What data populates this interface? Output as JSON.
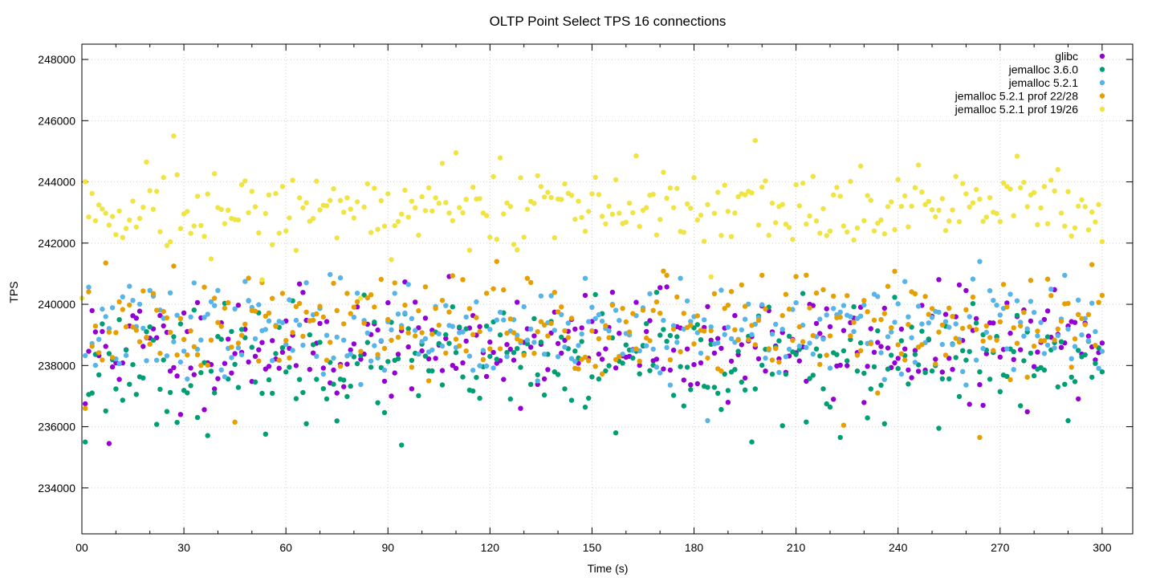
{
  "chart_data": {
    "type": "scatter",
    "title": "OLTP Point Select TPS 16 connections",
    "xlabel": "Time (s)",
    "ylabel": "TPS",
    "xlim": [
      0,
      309
    ],
    "ylim": [
      232500,
      248500
    ],
    "x_ticks": [
      0,
      30,
      60,
      90,
      120,
      150,
      180,
      210,
      240,
      270,
      300
    ],
    "x_tick_labels": [
      "00",
      "30",
      "60",
      "90",
      "120",
      "150",
      "180",
      "210",
      "240",
      "270",
      "300"
    ],
    "y_ticks": [
      234000,
      236000,
      238000,
      240000,
      242000,
      244000,
      246000,
      248000
    ],
    "y_tick_labels": [
      "234000",
      "236000",
      "238000",
      "240000",
      "242000",
      "244000",
      "246000",
      "248000"
    ],
    "grid": true,
    "legend_position": "top-right",
    "x_range_per_series": [
      1,
      300
    ],
    "series": [
      {
        "name": "glibc",
        "color": "#9400d3",
        "mean": 238700,
        "spread": 850,
        "seed": 11,
        "outliers": [
          [
            1,
            236750
          ],
          [
            8,
            235450
          ],
          [
            29,
            236400
          ],
          [
            75,
            237100
          ],
          [
            161,
            238300
          ],
          [
            198,
            238600
          ],
          [
            221,
            236900
          ],
          [
            260,
            240450
          ],
          [
            265,
            236700
          ]
        ]
      },
      {
        "name": "jemalloc 3.6.0",
        "color": "#009e73",
        "mean": 238050,
        "spread": 900,
        "seed": 23,
        "outliers": [
          [
            1,
            235500
          ],
          [
            34,
            236300
          ],
          [
            66,
            236100
          ],
          [
            94,
            235400
          ],
          [
            157,
            235800
          ],
          [
            197,
            235500
          ],
          [
            223,
            235650
          ],
          [
            236,
            236100
          ],
          [
            252,
            235950
          ]
        ]
      },
      {
        "name": "jemalloc 5.2.1",
        "color": "#56b4e9",
        "mean": 239150,
        "spread": 750,
        "seed": 37,
        "outliers": [
          [
            33,
            240700
          ],
          [
            96,
            240650
          ],
          [
            148,
            240850
          ],
          [
            176,
            240850
          ],
          [
            184,
            236200
          ],
          [
            264,
            241400
          ]
        ]
      },
      {
        "name": "jemalloc 5.2.1 prof 22/28",
        "color": "#e69f00",
        "mean": 239250,
        "spread": 850,
        "seed": 51,
        "outliers": [
          [
            1,
            236600
          ],
          [
            7,
            241350
          ],
          [
            27,
            241250
          ],
          [
            45,
            236150
          ],
          [
            122,
            241400
          ],
          [
            213,
            240950
          ],
          [
            224,
            236050
          ],
          [
            264,
            235650
          ]
        ]
      },
      {
        "name": "jemalloc 5.2.1 prof 19/26",
        "color": "#f0e442",
        "mean": 243150,
        "spread": 650,
        "seed": 73,
        "outliers": [
          [
            0,
            240200
          ],
          [
            19,
            244650
          ],
          [
            27,
            245500
          ],
          [
            110,
            244950
          ],
          [
            163,
            244850
          ],
          [
            198,
            245350
          ],
          [
            246,
            244550
          ],
          [
            287,
            244400
          ],
          [
            300,
            242050
          ],
          [
            53,
            240800
          ],
          [
            82,
            240200
          ],
          [
            185,
            240900
          ]
        ]
      }
    ]
  }
}
